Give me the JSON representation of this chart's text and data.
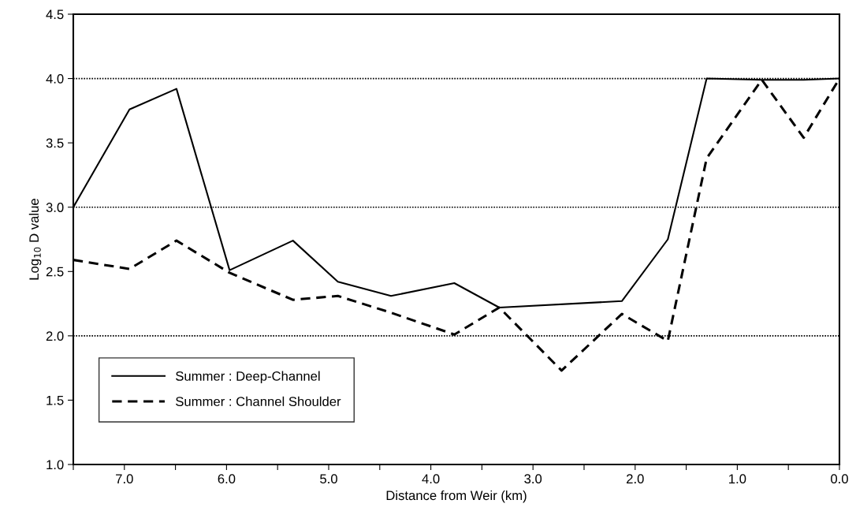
{
  "chart_data": {
    "type": "line",
    "xlabel": "Distance from Weir (km)",
    "ylabel": "Log$_{10}$ D value",
    "xlim": [
      7.5,
      0.0
    ],
    "ylim": [
      1.0,
      4.5
    ],
    "xticks": [
      {
        "value": 7.5,
        "label": null
      },
      {
        "value": 7,
        "label": "7.0"
      },
      {
        "value": 6.5,
        "label": null
      },
      {
        "value": 6,
        "label": "6.0"
      },
      {
        "value": 5.5,
        "label": null
      },
      {
        "value": 5,
        "label": "5.0"
      },
      {
        "value": 4.5,
        "label": null
      },
      {
        "value": 4,
        "label": "4.0"
      },
      {
        "value": 3.5,
        "label": null
      },
      {
        "value": 3,
        "label": "3.0"
      },
      {
        "value": 2.5,
        "label": null
      },
      {
        "value": 2,
        "label": "2.0"
      },
      {
        "value": 1.5,
        "label": null
      },
      {
        "value": 1,
        "label": "1.0"
      },
      {
        "value": 0.5,
        "label": null
      },
      {
        "value": 0,
        "label": "0.0"
      }
    ],
    "yticks": [
      {
        "value": 1,
        "label": "1.0"
      },
      {
        "value": 1.5,
        "label": "1.5"
      },
      {
        "value": 2,
        "label": "2.0"
      },
      {
        "value": 2.5,
        "label": "2.5"
      },
      {
        "value": 3,
        "label": "3.0"
      },
      {
        "value": 3.5,
        "label": "3.5"
      },
      {
        "value": 4,
        "label": "4.0"
      },
      {
        "value": 4.5,
        "label": "4.5"
      }
    ],
    "ref_lines": [
      {
        "axis": "y",
        "value": 2.0,
        "line_style": "dotted",
        "color": "#000000"
      },
      {
        "axis": "y",
        "value": 3.0,
        "line_style": "dotted",
        "color": "#000000"
      },
      {
        "axis": "y",
        "value": 4.0,
        "line_style": "dotted",
        "color": "#000000"
      }
    ],
    "legend": "bottom left",
    "marker": "none",
    "series": [
      {
        "name": "Summer : Deep-Channel",
        "color": "#000000",
        "line_style": "solid",
        "x": [
          7.5,
          6.95,
          6.49,
          5.97,
          5.35,
          4.91,
          4.39,
          3.77,
          3.33,
          2.13,
          1.68,
          1.3,
          0.76,
          0.35,
          0.0
        ],
        "values": [
          3.0,
          3.76,
          3.92,
          2.51,
          2.74,
          2.42,
          2.31,
          2.41,
          2.22,
          2.27,
          2.75,
          4.0,
          3.99,
          3.99,
          4.0
        ]
      },
      {
        "name": "Summer : Channel Shoulder",
        "color": "#000000",
        "line_style": "dashed",
        "x": [
          7.5,
          6.95,
          6.49,
          5.97,
          5.35,
          4.91,
          4.39,
          3.77,
          3.33,
          2.72,
          2.13,
          1.68,
          1.3,
          0.76,
          0.35,
          0.0
        ],
        "values": [
          2.59,
          2.52,
          2.74,
          2.49,
          2.28,
          2.31,
          2.18,
          2.01,
          2.22,
          1.73,
          2.17,
          1.96,
          3.38,
          3.99,
          3.54,
          4.0
        ]
      }
    ]
  }
}
